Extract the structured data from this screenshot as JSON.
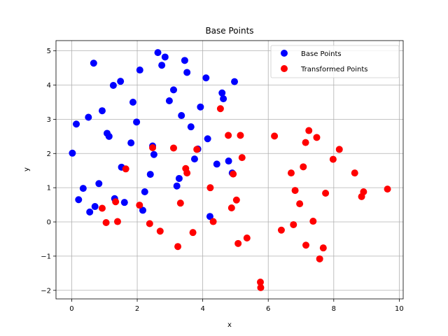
{
  "chart_data": {
    "type": "scatter",
    "title": "Base Points",
    "xlabel": "x",
    "ylabel": "y",
    "xlim": [
      -0.48,
      10.12
    ],
    "ylim": [
      -2.25,
      5.3
    ],
    "xticks": [
      "0",
      "2",
      "4",
      "6",
      "8",
      "10"
    ],
    "yticks": [
      "−2",
      "−1",
      "0",
      "1",
      "2",
      "3",
      "4",
      "5"
    ],
    "xtick_values": [
      0,
      2,
      4,
      6,
      8,
      10
    ],
    "ytick_values": [
      -2,
      -1,
      0,
      1,
      2,
      3,
      4,
      5
    ],
    "grid": true,
    "legend_position": "upper right",
    "series": [
      {
        "name": "Base Points",
        "color": "#0000ff",
        "points": [
          [
            0.02,
            2.01
          ],
          [
            0.14,
            2.86
          ],
          [
            0.21,
            0.65
          ],
          [
            0.35,
            0.98
          ],
          [
            0.51,
            3.06
          ],
          [
            0.55,
            0.29
          ],
          [
            0.67,
            4.64
          ],
          [
            0.71,
            0.45
          ],
          [
            0.83,
            1.12
          ],
          [
            0.93,
            3.25
          ],
          [
            1.08,
            2.59
          ],
          [
            1.14,
            2.5
          ],
          [
            1.27,
            3.99
          ],
          [
            1.31,
            0.68
          ],
          [
            1.49,
            4.11
          ],
          [
            1.52,
            1.6
          ],
          [
            1.61,
            0.57
          ],
          [
            1.81,
            2.31
          ],
          [
            1.87,
            3.5
          ],
          [
            1.98,
            2.92
          ],
          [
            2.08,
            4.44
          ],
          [
            2.17,
            0.34
          ],
          [
            2.23,
            0.88
          ],
          [
            2.4,
            1.39
          ],
          [
            2.47,
            2.22
          ],
          [
            2.51,
            1.97
          ],
          [
            2.63,
            4.95
          ],
          [
            2.75,
            4.58
          ],
          [
            2.85,
            4.82
          ],
          [
            2.98,
            3.54
          ],
          [
            3.11,
            3.86
          ],
          [
            3.21,
            1.05
          ],
          [
            3.28,
            1.27
          ],
          [
            3.35,
            3.11
          ],
          [
            3.45,
            4.72
          ],
          [
            3.52,
            4.37
          ],
          [
            3.64,
            2.78
          ],
          [
            3.75,
            1.84
          ],
          [
            3.85,
            2.13
          ],
          [
            3.93,
            3.36
          ],
          [
            4.1,
            4.21
          ],
          [
            4.15,
            2.43
          ],
          [
            4.22,
            0.16
          ],
          [
            4.43,
            1.69
          ],
          [
            4.59,
            3.77
          ],
          [
            4.63,
            3.6
          ],
          [
            4.79,
            1.78
          ],
          [
            4.9,
            1.43
          ],
          [
            4.97,
            4.1
          ]
        ]
      },
      {
        "name": "Transformed Points",
        "color": "#ff0000",
        "points": [
          [
            0.93,
            0.4
          ],
          [
            1.05,
            -0.02
          ],
          [
            1.34,
            0.59
          ],
          [
            1.4,
            0.01
          ],
          [
            1.65,
            1.55
          ],
          [
            2.07,
            0.49
          ],
          [
            2.38,
            -0.05
          ],
          [
            2.47,
            2.17
          ],
          [
            2.7,
            -0.27
          ],
          [
            3.11,
            2.16
          ],
          [
            3.24,
            -0.72
          ],
          [
            3.32,
            0.55
          ],
          [
            3.48,
            1.56
          ],
          [
            3.52,
            1.43
          ],
          [
            3.7,
            -0.31
          ],
          [
            3.82,
            2.12
          ],
          [
            4.23,
            1.0
          ],
          [
            4.32,
            0.01
          ],
          [
            4.54,
            3.31
          ],
          [
            4.78,
            2.53
          ],
          [
            4.88,
            0.41
          ],
          [
            4.93,
            1.4
          ],
          [
            5.03,
            0.64
          ],
          [
            5.08,
            -0.63
          ],
          [
            5.15,
            2.53
          ],
          [
            5.2,
            1.88
          ],
          [
            5.35,
            -0.47
          ],
          [
            5.76,
            -1.76
          ],
          [
            5.77,
            -1.92
          ],
          [
            6.19,
            2.51
          ],
          [
            6.4,
            -0.24
          ],
          [
            6.7,
            1.43
          ],
          [
            6.77,
            -0.08
          ],
          [
            6.82,
            0.92
          ],
          [
            6.96,
            0.53
          ],
          [
            7.07,
            1.61
          ],
          [
            7.14,
            2.32
          ],
          [
            7.15,
            -0.68
          ],
          [
            7.24,
            2.67
          ],
          [
            7.37,
            0.02
          ],
          [
            7.48,
            2.47
          ],
          [
            7.57,
            -1.08
          ],
          [
            7.68,
            -0.76
          ],
          [
            7.75,
            0.84
          ],
          [
            7.98,
            1.83
          ],
          [
            8.17,
            2.12
          ],
          [
            8.64,
            1.43
          ],
          [
            8.85,
            0.74
          ],
          [
            8.91,
            0.88
          ],
          [
            9.64,
            0.96
          ]
        ]
      }
    ]
  }
}
